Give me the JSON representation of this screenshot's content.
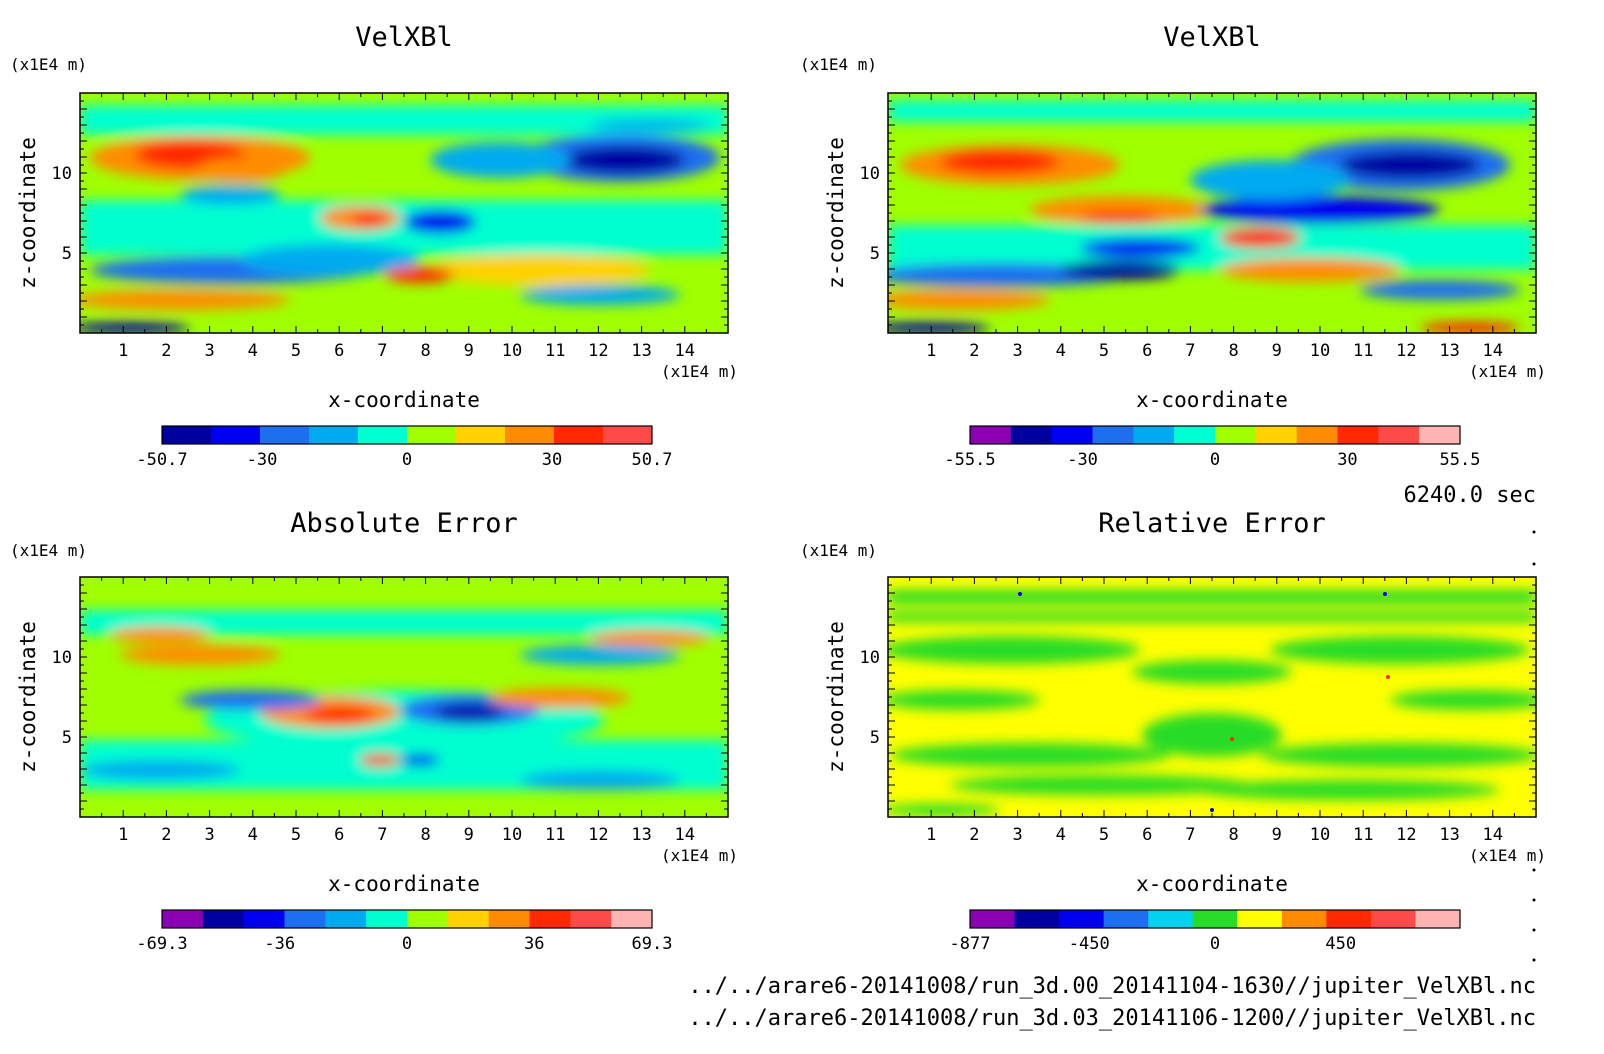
{
  "time_label": "6240.0 sec",
  "files": [
    "../../arare6-20141008/run_3d.00_20141104-1630//jupiter_VelXBl.nc",
    "../../arare6-20141008/run_3d.03_20141106-1200//jupiter_VelXBl.nc"
  ],
  "chart_data": [
    {
      "type": "heatmap",
      "title": "VelXBl",
      "xlabel": "x-coordinate",
      "ylabel": "z-coordinate",
      "x_unit": "(x1E4 m)",
      "y_unit": "(x1E4 m)",
      "xlim": [
        0,
        15
      ],
      "ylim": [
        0,
        15
      ],
      "x_ticks": [
        1,
        2,
        3,
        4,
        5,
        6,
        7,
        8,
        9,
        10,
        11,
        12,
        13,
        14
      ],
      "y_ticks": [
        5,
        10
      ],
      "colorbar": {
        "min": -50.7,
        "max": 50.7,
        "tick_values": [
          -50.7,
          -30,
          0,
          30,
          50.7
        ],
        "tick_labels": [
          "-50.7",
          "-30",
          "0",
          "30",
          "50.7"
        ],
        "colors": [
          "#0000a0",
          "#0000f0",
          "#1e6ef0",
          "#00aaf0",
          "#00ffd0",
          "#a0ff00",
          "#ffd200",
          "#ff8c00",
          "#ff2800",
          "#ff4a4a"
        ]
      }
    },
    {
      "type": "heatmap",
      "title": "VelXBl",
      "xlabel": "x-coordinate",
      "ylabel": "z-coordinate",
      "x_unit": "(x1E4 m)",
      "y_unit": "(x1E4 m)",
      "xlim": [
        0,
        15
      ],
      "ylim": [
        0,
        15
      ],
      "x_ticks": [
        1,
        2,
        3,
        4,
        5,
        6,
        7,
        8,
        9,
        10,
        11,
        12,
        13,
        14
      ],
      "y_ticks": [
        5,
        10
      ],
      "colorbar": {
        "min": -55.5,
        "max": 55.5,
        "tick_values": [
          -55.5,
          -30,
          0,
          30,
          55.5
        ],
        "tick_labels": [
          "-55.5",
          "-30",
          "0",
          "30",
          "55.5"
        ],
        "colors": [
          "#8c00b4",
          "#0000a0",
          "#0000f0",
          "#1e6ef0",
          "#00aaf0",
          "#00ffd0",
          "#a0ff00",
          "#ffd200",
          "#ff8c00",
          "#ff2800",
          "#ff4a4a",
          "#ffb4b4"
        ]
      }
    },
    {
      "type": "heatmap",
      "title": "Absolute Error",
      "xlabel": "x-coordinate",
      "ylabel": "z-coordinate",
      "x_unit": "(x1E4 m)",
      "y_unit": "(x1E4 m)",
      "xlim": [
        0,
        15
      ],
      "ylim": [
        0,
        15
      ],
      "x_ticks": [
        1,
        2,
        3,
        4,
        5,
        6,
        7,
        8,
        9,
        10,
        11,
        12,
        13,
        14
      ],
      "y_ticks": [
        5,
        10
      ],
      "colorbar": {
        "min": -69.3,
        "max": 69.3,
        "tick_values": [
          -69.3,
          -36,
          0,
          36,
          69.3
        ],
        "tick_labels": [
          "-69.3",
          "-36",
          "0",
          "36",
          "69.3"
        ],
        "colors": [
          "#8c00b4",
          "#0000a0",
          "#0000f0",
          "#1e6ef0",
          "#00aaf0",
          "#00ffd0",
          "#a0ff00",
          "#ffd200",
          "#ff8c00",
          "#ff2800",
          "#ff4a4a",
          "#ffb4b4"
        ]
      }
    },
    {
      "type": "heatmap",
      "title": "Relative Error",
      "xlabel": "x-coordinate",
      "ylabel": "z-coordinate",
      "x_unit": "(x1E4 m)",
      "y_unit": "(x1E4 m)",
      "xlim": [
        0,
        15
      ],
      "ylim": [
        0,
        15
      ],
      "x_ticks": [
        1,
        2,
        3,
        4,
        5,
        6,
        7,
        8,
        9,
        10,
        11,
        12,
        13,
        14
      ],
      "y_ticks": [
        5,
        10
      ],
      "colorbar": {
        "min": -877,
        "max": 877,
        "tick_values": [
          -877,
          -450,
          0,
          450
        ],
        "tick_labels": [
          "-877",
          "-450",
          "0",
          "450"
        ],
        "colors": [
          "#8c00b4",
          "#0000a0",
          "#0000f0",
          "#1e6ef0",
          "#00d2f0",
          "#28dc28",
          "#ffff00",
          "#ff8c00",
          "#ff2800",
          "#ff4a4a",
          "#ffb4b4"
        ]
      }
    }
  ]
}
